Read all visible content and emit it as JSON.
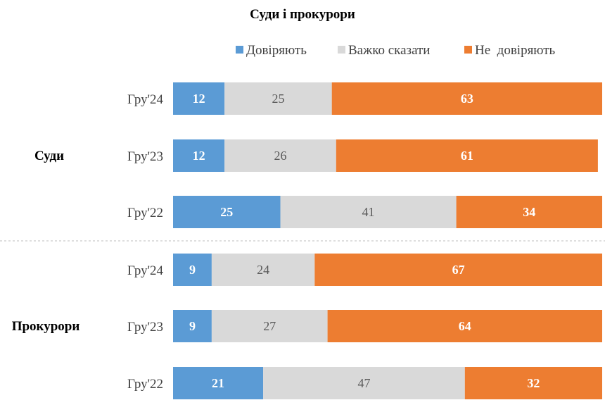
{
  "chart_data": {
    "type": "bar",
    "orientation": "horizontal",
    "stacked": true,
    "title": "Суди і прокурори",
    "series": [
      {
        "name": "Довіряють",
        "color": "#5B9BD5"
      },
      {
        "name": "Важко сказати",
        "color": "#D9D9D9"
      },
      {
        "name": "Не  довіряють",
        "color": "#ED7D31"
      }
    ],
    "groups": [
      {
        "name": "Суди",
        "rows": [
          {
            "label": "Гру'24",
            "values": [
              12,
              25,
              63
            ]
          },
          {
            "label": "Гру'23",
            "values": [
              12,
              26,
              61
            ]
          },
          {
            "label": "Гру'22",
            "values": [
              25,
              41,
              34
            ]
          }
        ]
      },
      {
        "name": "Прокурори",
        "rows": [
          {
            "label": "Гру'24",
            "values": [
              9,
              24,
              67
            ]
          },
          {
            "label": "Гру'23",
            "values": [
              9,
              27,
              64
            ]
          },
          {
            "label": "Гру'22",
            "values": [
              21,
              47,
              32
            ]
          }
        ]
      }
    ],
    "xlim": [
      0,
      100
    ],
    "legend_position": "top",
    "grid": false
  }
}
